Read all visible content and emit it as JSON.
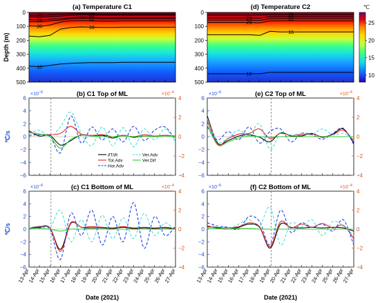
{
  "chart_data": [
    {
      "id": "a",
      "type": "heatmap",
      "title": "(a) Temperature C1",
      "ylabel": "Depth (m)",
      "ylim": [
        500,
        0
      ],
      "yticks": [
        "0",
        "100",
        "200",
        "300",
        "400",
        "500"
      ],
      "contours": [
        {
          "label": "26",
          "depth": [
            20,
            22,
            18,
            14,
            10,
            8,
            10,
            12,
            12,
            12,
            12,
            12,
            12,
            12,
            12
          ]
        },
        {
          "label": "25",
          "depth": [
            32,
            34,
            30,
            26,
            20,
            16,
            18,
            20,
            20,
            20,
            20,
            20,
            20,
            20,
            20
          ]
        },
        {
          "label": "24",
          "depth": [
            52,
            55,
            48,
            45,
            38,
            34,
            36,
            38,
            38,
            38,
            38,
            38,
            38,
            38,
            38
          ]
        },
        {
          "label": "22",
          "depth": [
            65,
            68,
            60,
            55,
            46,
            42,
            44,
            46,
            46,
            46,
            46,
            46,
            46,
            46,
            46
          ]
        },
        {
          "label": "20",
          "depth": [
            95,
            100,
            90,
            70,
            60,
            58,
            60,
            62,
            62,
            60,
            60,
            60,
            60,
            60,
            60
          ]
        },
        {
          "label": "16",
          "depth": [
            170,
            175,
            165,
            120,
            108,
            104,
            106,
            108,
            108,
            106,
            106,
            106,
            106,
            106,
            106
          ]
        },
        {
          "label": "10",
          "depth": [
            385,
            390,
            380,
            370,
            365,
            362,
            360,
            360,
            360,
            358,
            358,
            358,
            358,
            358,
            358
          ]
        }
      ]
    },
    {
      "id": "d",
      "type": "heatmap",
      "title": "(d) Temperature C2",
      "ylim": [
        500,
        0
      ],
      "yticks": [
        "0",
        "100",
        "200",
        "300",
        "400",
        "500"
      ],
      "colorbar": {
        "label": "℃",
        "ticks": [
          "10",
          "15",
          "20",
          "25"
        ],
        "range": [
          8,
          28
        ]
      },
      "contours": [
        {
          "label": "26",
          "depth": [
            20,
            20,
            20,
            20,
            20,
            18,
            16,
            16,
            16,
            16,
            16,
            16,
            16,
            16,
            16
          ]
        },
        {
          "label": "24",
          "depth": [
            40,
            40,
            40,
            40,
            40,
            42,
            30,
            30,
            30,
            30,
            30,
            30,
            30,
            30,
            30
          ]
        },
        {
          "label": "22",
          "depth": [
            55,
            55,
            55,
            55,
            55,
            58,
            44,
            44,
            44,
            44,
            44,
            44,
            44,
            44,
            44
          ]
        },
        {
          "label": "20",
          "depth": [
            72,
            72,
            72,
            72,
            72,
            75,
            60,
            60,
            60,
            60,
            60,
            60,
            60,
            60,
            60
          ]
        },
        {
          "label": "16",
          "depth": [
            160,
            160,
            160,
            160,
            160,
            165,
            135,
            140,
            140,
            140,
            140,
            140,
            140,
            140,
            140
          ]
        },
        {
          "label": "10",
          "depth": [
            440,
            440,
            440,
            440,
            440,
            440,
            430,
            430,
            430,
            430,
            430,
            430,
            430,
            430,
            430
          ]
        }
      ]
    },
    {
      "id": "b",
      "type": "line",
      "title": "(b) C1 Top of ML",
      "ylabel": "℃/s",
      "ylim": [
        -6,
        6
      ],
      "yticks": [
        "−6",
        "−4",
        "−2",
        "0",
        "2",
        "4",
        "6"
      ],
      "yscale_label": "×10",
      "yscale_exp": "−6",
      "y2lim": [
        -4,
        4
      ],
      "y2ticks": [
        "−4",
        "−2",
        "0",
        "2",
        "4"
      ],
      "y2scale_label": "×10",
      "y2scale_exp": "−4",
      "vline": 2.1,
      "legend": [
        {
          "label": "∂T/∂t",
          "color": "#000000",
          "dash": "solid"
        },
        {
          "label": "Tot.Adv",
          "color": "#e8251f",
          "dash": "solid"
        },
        {
          "label": "Hor.Adv",
          "color": "#1f3fe0",
          "dash": "dashed"
        },
        {
          "label": "Ver.Adv",
          "color": "#45e0e0",
          "dash": "dashed"
        },
        {
          "label": "Ver.Dif",
          "color": "#2ecf2e",
          "dash": "solid"
        }
      ],
      "series": [
        {
          "color": "#000000",
          "dash": "solid",
          "values": [
            0.9,
            0.1,
            0.2,
            -1.3,
            -0.6,
            0.3,
            0.1,
            0.2,
            -0.2,
            0.2,
            -0.1,
            0.1,
            0.0,
            0.2,
            0.0
          ]
        },
        {
          "color": "#e8251f",
          "dash": "solid",
          "values": [
            0.7,
            0.4,
            0.3,
            0.5,
            1.6,
            0.4,
            0.2,
            0.3,
            0.0,
            0.2,
            0.0,
            0.3,
            0.1,
            0.2,
            0.1
          ]
        },
        {
          "color": "#1f3fe0",
          "dash": "dashed",
          "values": [
            0.2,
            0.3,
            0.1,
            -2.5,
            3.2,
            -1.0,
            1.5,
            -0.5,
            1.2,
            -0.8,
            1.6,
            -0.6,
            1.0,
            1.5,
            -0.5
          ]
        },
        {
          "color": "#45e0e0",
          "dash": "dashed",
          "values": [
            0.5,
            1.0,
            0.0,
            1.5,
            3.8,
            0.5,
            -1.4,
            1.5,
            -1.4,
            1.4,
            -1.6,
            1.2,
            -0.5,
            1.2,
            -0.8
          ]
        },
        {
          "color": "#2ecf2e",
          "dash": "solid",
          "values": [
            0.6,
            0.4,
            0.0,
            -1.8,
            -0.4,
            0.2,
            0.1,
            0.0,
            0.0,
            0.1,
            0.0,
            0.1,
            0.0,
            0.1,
            0.0
          ]
        }
      ]
    },
    {
      "id": "e",
      "type": "line",
      "title": "(e) C2 Top of ML",
      "ylim": [
        -6,
        6
      ],
      "yticks": [
        "−6",
        "−4",
        "−2",
        "0",
        "2",
        "4",
        "6"
      ],
      "yscale_label": "×10",
      "yscale_exp": "−6",
      "y2lim": [
        -4,
        4
      ],
      "y2ticks": [
        "−4",
        "−2",
        "0",
        "2",
        "4"
      ],
      "y2scale_label": "×10",
      "y2scale_exp": "−4",
      "vline": 6.1,
      "series": [
        {
          "color": "#000000",
          "dash": "solid",
          "values": [
            3.2,
            -1.0,
            -0.6,
            0.1,
            0.3,
            -0.1,
            -0.8,
            0.6,
            0.1,
            0.1,
            0.5,
            -0.1,
            0.4,
            1.2,
            -1.0
          ]
        },
        {
          "color": "#e8251f",
          "dash": "solid",
          "values": [
            2.5,
            -1.2,
            -0.3,
            0.4,
            0.5,
            1.2,
            -0.3,
            0.5,
            0.2,
            0.3,
            0.4,
            0.0,
            0.3,
            1.0,
            -0.6
          ]
        },
        {
          "color": "#1f3fe0",
          "dash": "dashed",
          "values": [
            1.5,
            -0.5,
            0.8,
            -0.5,
            1.5,
            -1.0,
            0.8,
            1.2,
            -0.8,
            0.5,
            0.3,
            -0.4,
            0.5,
            1.3,
            -1.2
          ]
        },
        {
          "color": "#45e0e0",
          "dash": "dashed",
          "values": [
            2.8,
            -0.8,
            -0.2,
            1.0,
            0.2,
            2.0,
            -2.0,
            0.6,
            0.2,
            0.5,
            0.3,
            1.2,
            0.3,
            0.5,
            -0.4
          ]
        },
        {
          "color": "#2ecf2e",
          "dash": "solid",
          "values": [
            1.8,
            -1.3,
            -0.8,
            -0.2,
            0.1,
            0.0,
            -0.1,
            0.0,
            0.0,
            0.0,
            0.0,
            0.0,
            0.0,
            0.0,
            0.0
          ]
        }
      ]
    },
    {
      "id": "c",
      "type": "line",
      "title": "(c) C1 Bottom of ML",
      "ylabel": "℃/s",
      "ylim": [
        -6,
        6
      ],
      "yticks": [
        "−6",
        "−4",
        "−2",
        "0",
        "2",
        "4",
        "6"
      ],
      "yscale_label": "×10",
      "yscale_exp": "−6",
      "y2lim": [
        -4,
        4
      ],
      "y2ticks": [
        "−4",
        "−2",
        "0",
        "2",
        "4"
      ],
      "y2scale_label": "×10",
      "y2scale_exp": "−4",
      "vline": 2.1,
      "series": [
        {
          "color": "#000000",
          "dash": "solid",
          "values": [
            0.2,
            0.3,
            0.2,
            -3.2,
            1.0,
            0.3,
            0.2,
            0.2,
            0.1,
            0.3,
            0.1,
            0.2,
            0.1,
            0.2,
            0.0
          ]
        },
        {
          "color": "#e8251f",
          "dash": "solid",
          "values": [
            0.2,
            0.4,
            0.2,
            -3.5,
            0.9,
            0.3,
            0.4,
            0.3,
            0.2,
            0.4,
            0.2,
            0.3,
            0.2,
            0.3,
            0.1
          ]
        },
        {
          "color": "#1f3fe0",
          "dash": "dashed",
          "values": [
            0.1,
            0.2,
            0.0,
            -4.8,
            2.5,
            -1.0,
            3.0,
            -2.5,
            2.0,
            -2.0,
            4.2,
            -3.0,
            2.0,
            -1.0,
            0.5
          ]
        },
        {
          "color": "#45e0e0",
          "dash": "dashed",
          "values": [
            0.2,
            0.5,
            0.2,
            3.0,
            -2.0,
            1.5,
            -2.0,
            2.2,
            -1.5,
            1.8,
            -1.5,
            2.5,
            -1.0,
            1.0,
            -0.5
          ]
        },
        {
          "color": "#2ecf2e",
          "dash": "solid",
          "values": [
            0.1,
            0.1,
            0.0,
            -0.3,
            0.0,
            0.0,
            0.0,
            0.0,
            0.0,
            0.0,
            0.0,
            0.0,
            0.0,
            0.0,
            0.0
          ]
        }
      ]
    },
    {
      "id": "f",
      "type": "line",
      "title": "(f) C2 Bottom of ML",
      "ylim": [
        -6,
        6
      ],
      "yticks": [
        "−6",
        "−4",
        "−2",
        "0",
        "2",
        "4",
        "6"
      ],
      "yscale_label": "×10",
      "yscale_exp": "−6",
      "y2lim": [
        -4,
        4
      ],
      "y2ticks": [
        "−4",
        "−2",
        "0",
        "2",
        "4"
      ],
      "y2scale_label": "×10",
      "y2scale_exp": "−4",
      "vline": 6.1,
      "series": [
        {
          "color": "#000000",
          "dash": "solid",
          "values": [
            0.5,
            0.2,
            0.0,
            0.3,
            0.8,
            0.3,
            -3.0,
            0.8,
            0.3,
            0.2,
            0.3,
            0.2,
            0.3,
            0.2,
            -0.3
          ]
        },
        {
          "color": "#e8251f",
          "dash": "solid",
          "values": [
            0.4,
            0.3,
            0.2,
            0.4,
            1.0,
            0.4,
            -2.8,
            1.2,
            0.2,
            0.8,
            0.3,
            0.9,
            0.2,
            0.6,
            -1.5
          ]
        },
        {
          "color": "#1f3fe0",
          "dash": "dashed",
          "values": [
            1.0,
            0.5,
            0.3,
            0.0,
            2.0,
            1.2,
            -2.5,
            3.0,
            -0.5,
            1.0,
            0.3,
            0.8,
            -0.3,
            1.5,
            -2.5
          ]
        },
        {
          "color": "#45e0e0",
          "dash": "dashed",
          "values": [
            0.2,
            0.5,
            0.0,
            0.8,
            1.5,
            0.5,
            3.5,
            -2.5,
            1.0,
            0.3,
            1.5,
            -1.0,
            1.2,
            0.5,
            -1.0
          ]
        },
        {
          "color": "#2ecf2e",
          "dash": "solid",
          "values": [
            0.2,
            0.1,
            0.0,
            0.1,
            0.1,
            0.0,
            0.0,
            0.0,
            0.0,
            0.0,
            0.0,
            0.0,
            0.0,
            0.0,
            0.0
          ]
        }
      ]
    }
  ],
  "x_dates": [
    "13-Apr",
    "14-Apr",
    "15-Apr",
    "16-Apr",
    "17-Apr",
    "18-Apr",
    "19-Apr",
    "20-Apr",
    "21-Apr",
    "22-Apr",
    "23-Apr",
    "24-Apr",
    "25-Apr",
    "26-Apr",
    "27-Apr"
  ],
  "xlabel": "Date (2021)",
  "colors": {
    "left_axis": "#1f4fd8",
    "right_axis": "#e0550a"
  }
}
